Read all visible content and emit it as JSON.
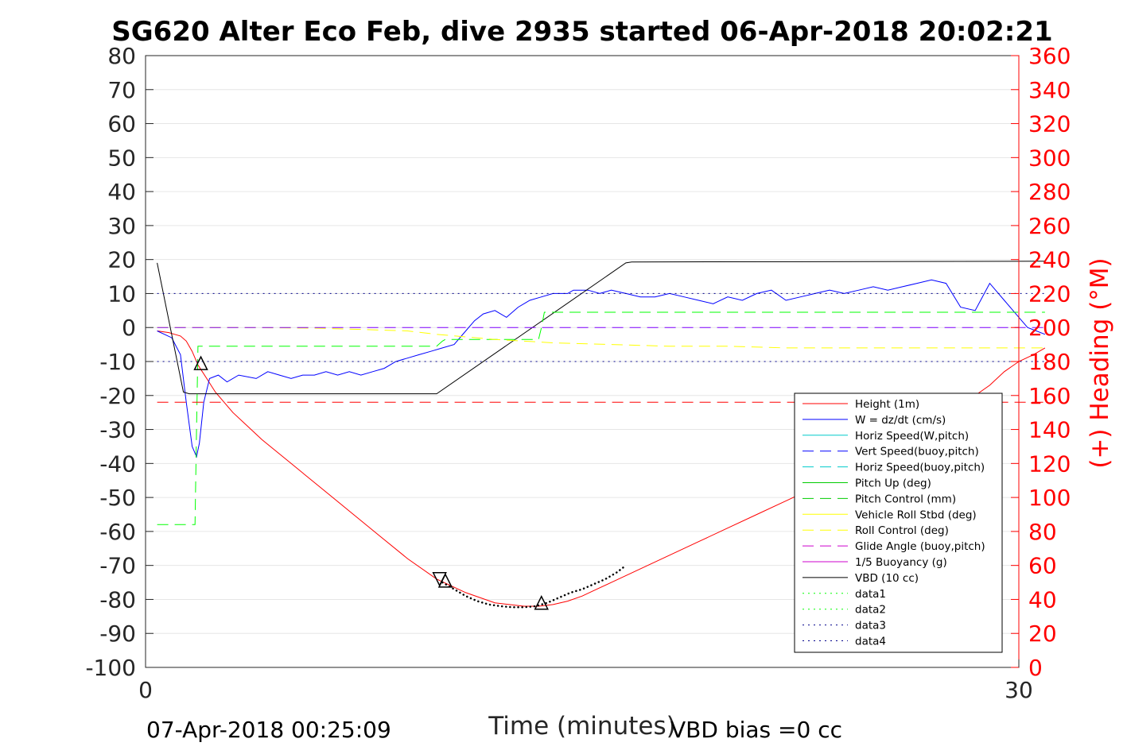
{
  "chart_data": {
    "type": "line",
    "title": "SG620 Alter Eco Feb, dive 2935 started 06-Apr-2018 20:02:21",
    "xlabel": "Time (minutes)",
    "ylabel": "",
    "y2label": "(+) Heading (°M)",
    "xlim": [
      0,
      30
    ],
    "ylim": [
      -100,
      80
    ],
    "y2lim": [
      0,
      360
    ],
    "x_ticks": [
      0,
      30
    ],
    "y_ticks": [
      80,
      70,
      60,
      50,
      40,
      30,
      20,
      10,
      0,
      -10,
      -20,
      -30,
      -40,
      -50,
      -60,
      -70,
      -80,
      -90,
      -100
    ],
    "y2_ticks": [
      360,
      340,
      320,
      300,
      280,
      260,
      240,
      220,
      200,
      180,
      160,
      140,
      120,
      100,
      80,
      60,
      40,
      20,
      0
    ],
    "grid": "horizontal",
    "legend_position": "bottom-right",
    "footer_left": "07-Apr-2018 00:25:09",
    "footer_right": "VBD bias =0 cc",
    "colors": {
      "axis_left": "#262626",
      "axis_right": "#ff0000",
      "grid": "#e6e6e6"
    },
    "series": [
      {
        "name": "Height (1m)",
        "color": "#ff0000",
        "style": "solid",
        "width": 1,
        "x": [
          0.4,
          0.8,
          1.0,
          1.2,
          1.4,
          1.6,
          1.8,
          2.1,
          2.4,
          2.7,
          3.0,
          3.5,
          4.0,
          5.0,
          6.0,
          7.0,
          8.0,
          9.0,
          10.0,
          11.0,
          12.0,
          13.0,
          13.5,
          14.0,
          14.5,
          15.0,
          15.5,
          16.0,
          17.0,
          18.0,
          19.0,
          20.0,
          21.0,
          22.0,
          23.0,
          24.0,
          25.0,
          26.0,
          27.0,
          28.0,
          29.0,
          29.5,
          30.0,
          30.5,
          30.9
        ],
        "y": [
          -1,
          -1.5,
          -2,
          -2.5,
          -4,
          -7,
          -11,
          -15,
          -19,
          -22,
          -25,
          -29,
          -33,
          -40,
          -47,
          -54,
          -61,
          -68,
          -74,
          -78,
          -81,
          -82,
          -82,
          -81.5,
          -80.5,
          -79,
          -77,
          -75,
          -71,
          -67,
          -63,
          -59,
          -55,
          -51,
          -47,
          -43,
          -38,
          -34,
          -29,
          -23,
          -17,
          -13,
          -10,
          -8,
          -6
        ]
      },
      {
        "name": "W = dz/dt (cm/s)",
        "color": "#0000ff",
        "style": "solid",
        "width": 1,
        "x": [
          0.4,
          0.9,
          1.2,
          1.4,
          1.6,
          1.75,
          1.85,
          2.0,
          2.2,
          2.5,
          2.8,
          3.2,
          3.8,
          4.2,
          4.6,
          5.0,
          5.4,
          5.8,
          6.2,
          6.6,
          7.0,
          7.4,
          7.8,
          8.2,
          8.6,
          9.0,
          9.4,
          9.8,
          10.2,
          10.6,
          11.0,
          11.3,
          11.6,
          12.0,
          12.4,
          12.8,
          13.2,
          13.6,
          14.0,
          14.3,
          14.5,
          14.7,
          14.9,
          15.2,
          15.6,
          16.0,
          16.5,
          17.0,
          17.5,
          18.0,
          18.5,
          19.0,
          19.5,
          20.0,
          20.5,
          21.0,
          21.5,
          22.0,
          22.5,
          23.0,
          23.5,
          24.0,
          24.5,
          25.0,
          25.5,
          26.0,
          26.5,
          27.0,
          27.5,
          28.0,
          28.5,
          29.0,
          29.5,
          30.0,
          30.3,
          30.6,
          30.9
        ],
        "y": [
          -1,
          -3,
          -8,
          -22,
          -35,
          -38,
          -34,
          -22,
          -15,
          -14,
          -16,
          -14,
          -15,
          -13,
          -14,
          -15,
          -14,
          -14,
          -13,
          -14,
          -13,
          -14,
          -13,
          -12,
          -10,
          -9,
          -8,
          -7,
          -6,
          -5,
          -1,
          2,
          4,
          5,
          3,
          6,
          8,
          9,
          10,
          10,
          10,
          11,
          11,
          11,
          10,
          11,
          10,
          9,
          9,
          10,
          9,
          8,
          7,
          9,
          8,
          10,
          11,
          8,
          9,
          10,
          11,
          10,
          11,
          12,
          11,
          12,
          13,
          14,
          13,
          6,
          5,
          13,
          8,
          3,
          0,
          -1,
          -2
        ]
      },
      {
        "name": "VBD (10 cc)",
        "color": "#000000",
        "style": "solid",
        "width": 1,
        "x": [
          0.4,
          1.3,
          1.5,
          10.0,
          16.5,
          16.7,
          30.9
        ],
        "y": [
          19,
          -19,
          -19.5,
          -19.5,
          19,
          19.3,
          19.5
        ]
      },
      {
        "name": "Pitch Control (mm)",
        "color": "#00ff00",
        "style": "dashed",
        "width": 1,
        "x": [
          0.4,
          1.7,
          1.75,
          1.8,
          10.0,
          10.2,
          10.3,
          11.5,
          13.5,
          13.6,
          13.7,
          30.9
        ],
        "y": [
          -58,
          -58,
          -30,
          -5.5,
          -5.5,
          -4,
          -3.5,
          -3.5,
          -3.5,
          0,
          4.5,
          4.5
        ]
      },
      {
        "name": "Roll Control (deg)",
        "color": "#ffff00",
        "style": "dashed",
        "width": 1,
        "x": [
          0.4,
          3.0,
          6.0,
          9.0,
          10.0,
          12.0,
          14.0,
          16.0,
          18.0,
          20.0,
          22.0,
          24.0,
          26.0,
          28.0,
          30.9
        ],
        "y": [
          0,
          0,
          -0.2,
          -1,
          -2,
          -3.5,
          -4.5,
          -5,
          -5.5,
          -5.5,
          -6,
          -6,
          -6,
          -6,
          -6
        ]
      },
      {
        "name": "Glide Angle (buoy,pitch)",
        "color": "#8000ff",
        "style": "dashed",
        "width": 1,
        "x": [
          0.4,
          30.9
        ],
        "y": [
          0,
          0
        ]
      },
      {
        "name": "Heading",
        "axis": "right",
        "color": "#ff0000",
        "style": "dashed",
        "width": 1,
        "x": [
          0.4,
          30.9
        ],
        "y": [
          156,
          156
        ]
      },
      {
        "name": "data3",
        "color": "#00008b",
        "style": "dotted",
        "width": 1,
        "x": [
          0.4,
          30.9
        ],
        "y": [
          10,
          10
        ]
      },
      {
        "name": "data4",
        "color": "#00008b",
        "style": "dotted",
        "width": 1,
        "x": [
          0.4,
          30.9
        ],
        "y": [
          -10,
          -10
        ]
      },
      {
        "name": "data1",
        "color": "#000000",
        "style": "dotted",
        "width": 2.5,
        "x": [
          10.2,
          10.6,
          11.0,
          11.4,
          11.8,
          12.2,
          12.6,
          13.0,
          13.4,
          13.8,
          14.2,
          14.6,
          15.0,
          15.4,
          15.8,
          16.2,
          16.5
        ],
        "y": [
          -75,
          -77,
          -79,
          -80.5,
          -81.5,
          -82,
          -82.3,
          -82.3,
          -82,
          -81,
          -79.5,
          -78,
          -77,
          -75.5,
          -74,
          -72,
          -70
        ]
      },
      {
        "name": "data2",
        "color": "#00ff00",
        "style": "dotted",
        "width": 1,
        "x": [],
        "y": []
      }
    ],
    "markers": [
      {
        "x": 1.9,
        "y": -10.5,
        "shape": "triangle-up"
      },
      {
        "x": 10.1,
        "y": -74,
        "shape": "triangle-down"
      },
      {
        "x": 10.3,
        "y": -74.5,
        "shape": "triangle-up"
      },
      {
        "x": 13.6,
        "y": -81,
        "shape": "triangle-up"
      }
    ],
    "legend": [
      {
        "label": "Height (1m)",
        "color": "#ff0000",
        "style": "solid"
      },
      {
        "label": "W = dz/dt (cm/s)",
        "color": "#0000ff",
        "style": "solid"
      },
      {
        "label": "Horiz Speed(W,pitch)",
        "color": "#00cccc",
        "style": "solid"
      },
      {
        "label": "Vert Speed(buoy,pitch)",
        "color": "#0000ff",
        "style": "dashed"
      },
      {
        "label": "Horiz Speed(buoy,pitch)",
        "color": "#00cccc",
        "style": "dashed"
      },
      {
        "label": "Pitch Up (deg)",
        "color": "#00cc00",
        "style": "solid"
      },
      {
        "label": "Pitch Control (mm)",
        "color": "#00cc00",
        "style": "dashed"
      },
      {
        "label": "Vehicle Roll Stbd (deg)",
        "color": "#ffff00",
        "style": "solid"
      },
      {
        "label": "Roll Control (deg)",
        "color": "#ffff00",
        "style": "dashed"
      },
      {
        "label": "Glide Angle (buoy,pitch)",
        "color": "#cc00cc",
        "style": "dashed"
      },
      {
        "label": "1/5 Buoyancy (g)",
        "color": "#cc00cc",
        "style": "solid"
      },
      {
        "label": "VBD (10 cc)",
        "color": "#000000",
        "style": "solid"
      },
      {
        "label": "data1",
        "color": "#00ff00",
        "style": "dotted"
      },
      {
        "label": "data2",
        "color": "#00ff00",
        "style": "dotted"
      },
      {
        "label": "data3",
        "color": "#00008b",
        "style": "dotted"
      },
      {
        "label": "data4",
        "color": "#00008b",
        "style": "dotted"
      }
    ]
  }
}
